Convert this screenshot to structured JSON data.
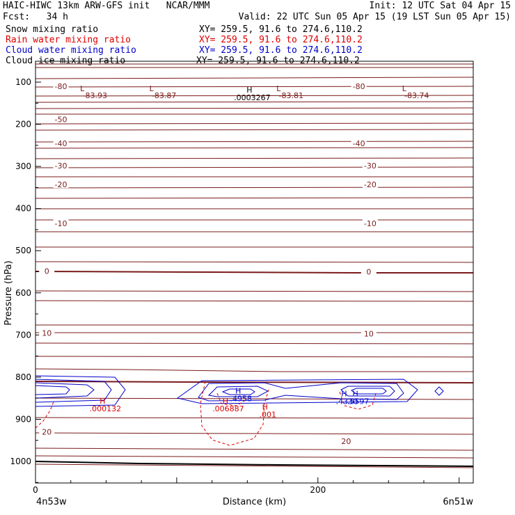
{
  "header": {
    "title": "HAIC-HIWC 13km ARW-GFS init   NCAR/MMM",
    "init": "Init: 12 UTC Sat 04 Apr 15",
    "fcst": "Fcst:   34 h",
    "valid": "Valid: 22 UTC Sun 05 Apr 15 (19 LST Sun 05 Apr 15)"
  },
  "fields": [
    {
      "name": "Snow mixing ratio",
      "xy": "XY= 259.5, 91.6 to 274.6,110.2",
      "color": "#000000"
    },
    {
      "name": "Rain water mixing ratio",
      "xy": "XY= 259.5, 91.6 to 274.6,110.2",
      "color": "#dd0000"
    },
    {
      "name": "Cloud water mixing ratio",
      "xy": "XY= 259.5, 91.6 to 274.6,110.2",
      "color": "#0000cc"
    },
    {
      "name": "Cloud ice mixing ratio",
      "xy": "XY= 259.5, 91.6 to 274.6,110.2",
      "color": "#000000"
    }
  ],
  "chart_data": {
    "type": "contour",
    "xlabel": "Distance (km)",
    "ylabel": "Pressure (hPa)",
    "xlim": [
      0,
      310
    ],
    "ylim": [
      1050,
      45
    ],
    "x_ticks": [
      0,
      200
    ],
    "y_ticks": [
      100,
      200,
      300,
      400,
      500,
      600,
      700,
      800,
      900,
      1000
    ],
    "endpoint_left": "4n53w",
    "endpoint_right": "6n51w",
    "temperature_labels": [
      {
        "text": "-80",
        "x": 18,
        "p": 110
      },
      {
        "text": "-80",
        "x": 229,
        "p": 110
      },
      {
        "text": "-50",
        "x": 18,
        "p": 188
      },
      {
        "text": "-40",
        "x": 18,
        "p": 245
      },
      {
        "text": "-40",
        "x": 229,
        "p": 245
      },
      {
        "text": "-30",
        "x": 18,
        "p": 298
      },
      {
        "text": "-30",
        "x": 237,
        "p": 298
      },
      {
        "text": "-20",
        "x": 18,
        "p": 343
      },
      {
        "text": "-20",
        "x": 237,
        "p": 343
      },
      {
        "text": "-10",
        "x": 18,
        "p": 435
      },
      {
        "text": "-10",
        "x": 237,
        "p": 435
      },
      {
        "text": "0",
        "x": 8,
        "p": 548
      },
      {
        "text": "0",
        "x": 236,
        "p": 550
      },
      {
        "text": "10",
        "x": 8,
        "p": 695
      },
      {
        "text": "10",
        "x": 236,
        "p": 697
      },
      {
        "text": "20",
        "x": 8,
        "p": 930
      },
      {
        "text": "20",
        "x": 220,
        "p": 952
      }
    ],
    "low_centers": [
      {
        "value": "-83.93",
        "x": 42,
        "p": 95
      },
      {
        "value": "-83.87",
        "x": 91,
        "p": 95
      },
      {
        "value": "-83.81",
        "x": 181,
        "p": 95
      },
      {
        "value": "-83.74",
        "x": 270,
        "p": 95
      }
    ],
    "high_centers": [
      {
        "value": ".0003267",
        "field": "cloud ice",
        "x": 153,
        "p": 125,
        "color": "#000000"
      },
      {
        "value": ".000132",
        "field": "rain water",
        "x": 49,
        "p": 863,
        "color": "#dd0000"
      },
      {
        "value": ".006887",
        "field": "rain water",
        "x": 136,
        "p": 863,
        "color": "#dd0000"
      },
      {
        "value": ".4958",
        "field": "cloud water",
        "x": 145,
        "p": 839,
        "color": "#0000cc"
      },
      {
        "value": ".001",
        "field": "rain water",
        "x": 164,
        "p": 877,
        "color": "#dd0000"
      },
      {
        "value": ".4330",
        "field": "cloud water",
        "x": 220,
        "p": 846,
        "color": "#0000cc"
      },
      {
        "value": ".5597",
        "field": "cloud water",
        "x": 228,
        "p": 846,
        "color": "#0000cc"
      }
    ]
  }
}
